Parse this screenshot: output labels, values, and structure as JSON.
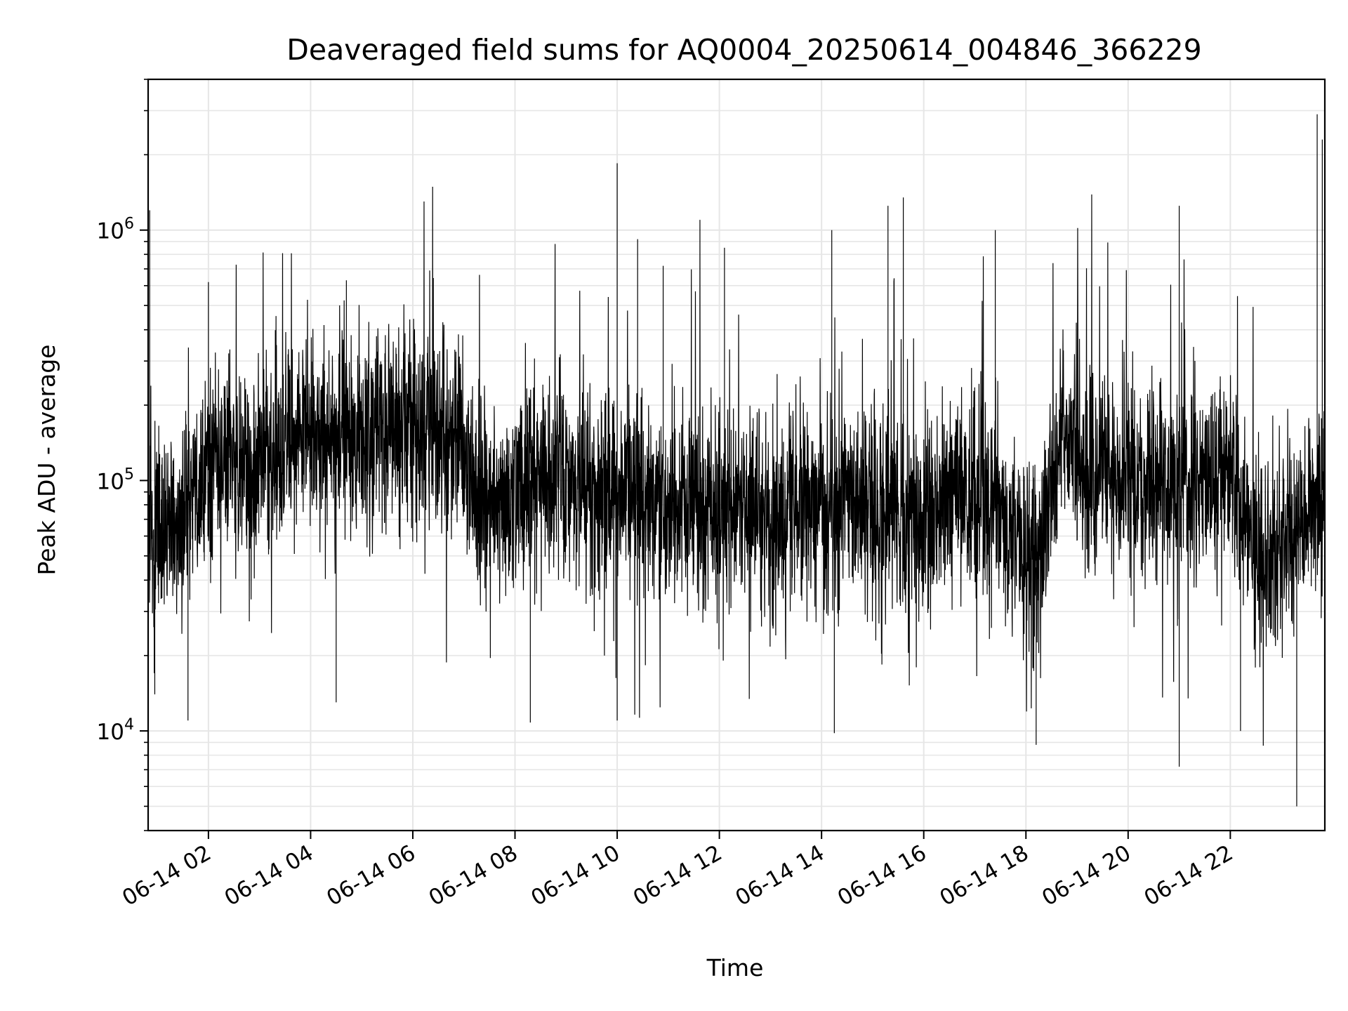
{
  "chart_data": {
    "type": "line",
    "title": "Deaveraged field sums for AQ0004_20250614_004846_366229",
    "xlabel": "Time",
    "ylabel": "Peak ADU - average",
    "yscale": "log",
    "ylim": [
      4000,
      4000000
    ],
    "xlim_hours": [
      0.82,
      23.85
    ],
    "grid": true,
    "line_color": "#000000",
    "grid_color": "#e6e6e6",
    "x_ticks": [
      {
        "hours": 2,
        "label": "06-14 02"
      },
      {
        "hours": 4,
        "label": "06-14 04"
      },
      {
        "hours": 6,
        "label": "06-14 06"
      },
      {
        "hours": 8,
        "label": "06-14 08"
      },
      {
        "hours": 10,
        "label": "06-14 10"
      },
      {
        "hours": 12,
        "label": "06-14 12"
      },
      {
        "hours": 14,
        "label": "06-14 14"
      },
      {
        "hours": 16,
        "label": "06-14 16"
      },
      {
        "hours": 18,
        "label": "06-14 18"
      },
      {
        "hours": 20,
        "label": "06-14 20"
      },
      {
        "hours": 22,
        "label": "06-14 22"
      }
    ],
    "y_ticks": [
      {
        "value": 10000,
        "base": "10",
        "exp": "4"
      },
      {
        "value": 100000,
        "base": "10",
        "exp": "5"
      },
      {
        "value": 1000000,
        "base": "10",
        "exp": "6"
      }
    ],
    "series": [
      {
        "x_hours": [
          0.82,
          1.5,
          2.0,
          3.0,
          4.0,
          5.0,
          5.8,
          6.8,
          7.5,
          8.3,
          9.0,
          10.0,
          11.0,
          12.0,
          13.0,
          14.0,
          15.0,
          16.0,
          16.8,
          17.5,
          18.2,
          18.7,
          19.2,
          20.0,
          21.0,
          22.0,
          22.6,
          23.2,
          23.85
        ],
        "baseline": [
          60000,
          65000,
          110000,
          120000,
          150000,
          160000,
          170000,
          140000,
          75000,
          100000,
          110000,
          85000,
          80000,
          75000,
          70000,
          85000,
          80000,
          70000,
          95000,
          75000,
          45000,
          160000,
          110000,
          100000,
          90000,
          110000,
          45000,
          60000,
          95000
        ],
        "spikes": [
          {
            "hours": 0.85,
            "value": 1200000
          },
          {
            "hours": 2.0,
            "value": 620000
          },
          {
            "hours": 4.7,
            "value": 630000
          },
          {
            "hours": 10.0,
            "value": 1850000
          },
          {
            "hours": 10.4,
            "value": 920000
          },
          {
            "hours": 10.9,
            "value": 720000
          },
          {
            "hours": 12.1,
            "value": 850000
          },
          {
            "hours": 14.2,
            "value": 1000000
          },
          {
            "hours": 15.3,
            "value": 1250000
          },
          {
            "hours": 15.6,
            "value": 1350000
          },
          {
            "hours": 17.4,
            "value": 1000000
          },
          {
            "hours": 21.0,
            "value": 1250000
          },
          {
            "hours": 23.7,
            "value": 2900000
          },
          {
            "hours": 23.8,
            "value": 2300000
          }
        ],
        "dips": [
          {
            "hours": 0.95,
            "value": 14000
          },
          {
            "hours": 1.6,
            "value": 11000
          },
          {
            "hours": 4.5,
            "value": 13000
          },
          {
            "hours": 8.3,
            "value": 10800
          },
          {
            "hours": 10.0,
            "value": 11000
          },
          {
            "hours": 14.25,
            "value": 9800
          },
          {
            "hours": 18.2,
            "value": 8800
          },
          {
            "hours": 21.0,
            "value": 7200
          },
          {
            "hours": 22.2,
            "value": 10000
          },
          {
            "hours": 23.3,
            "value": 5000
          }
        ]
      }
    ]
  }
}
